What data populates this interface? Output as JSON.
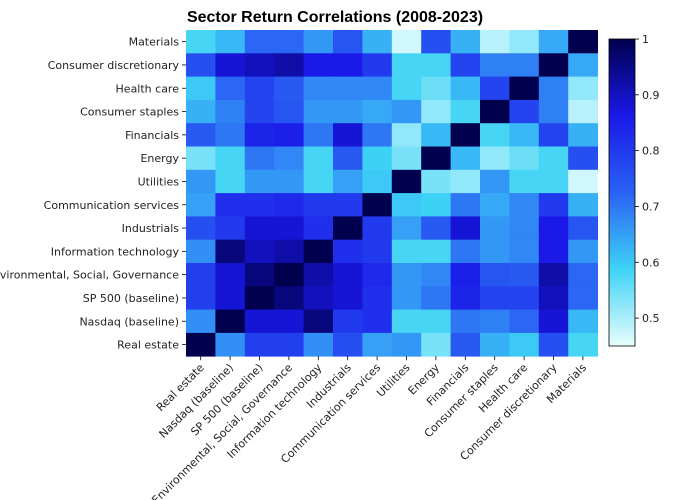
{
  "chart_data": {
    "type": "heatmap",
    "title": "Sector Return Correlations (2008-2023)",
    "x_labels": [
      "Real estate",
      "Nasdaq (baseline)",
      "SP 500 (baseline)",
      "Environmental, Social, Governance",
      "Information technology",
      "Industrials",
      "Communication services",
      "Utilities",
      "Energy",
      "Financials",
      "Consumer staples",
      "Health care",
      "Consumer discretionary",
      "Materials"
    ],
    "y_labels": [
      "Materials",
      "Consumer discretionary",
      "Health care",
      "Consumer staples",
      "Financials",
      "Energy",
      "Utilities",
      "Communication services",
      "Industrials",
      "Information technology",
      "Environmental, Social, Governance",
      "SP 500 (baseline)",
      "Nasdaq (baseline)",
      "Real estate"
    ],
    "values": [
      [
        0.58,
        0.62,
        0.72,
        0.72,
        0.66,
        0.75,
        0.63,
        0.47,
        0.76,
        0.63,
        0.49,
        0.52,
        0.64,
        1.0
      ],
      [
        0.76,
        0.88,
        0.9,
        0.92,
        0.86,
        0.86,
        0.8,
        0.58,
        0.58,
        0.78,
        0.69,
        0.69,
        1.0,
        0.64
      ],
      [
        0.6,
        0.72,
        0.78,
        0.74,
        0.68,
        0.68,
        0.68,
        0.58,
        0.55,
        0.62,
        0.78,
        1.0,
        0.69,
        0.52
      ],
      [
        0.63,
        0.69,
        0.78,
        0.75,
        0.66,
        0.66,
        0.64,
        0.66,
        0.52,
        0.58,
        1.0,
        0.78,
        0.69,
        0.49
      ],
      [
        0.74,
        0.7,
        0.84,
        0.85,
        0.7,
        0.88,
        0.7,
        0.52,
        0.62,
        1.0,
        0.58,
        0.62,
        0.78,
        0.63
      ],
      [
        0.54,
        0.58,
        0.7,
        0.68,
        0.58,
        0.74,
        0.59,
        0.54,
        1.0,
        0.62,
        0.52,
        0.55,
        0.58,
        0.76
      ],
      [
        0.66,
        0.58,
        0.66,
        0.66,
        0.58,
        0.65,
        0.6,
        1.0,
        0.54,
        0.52,
        0.66,
        0.58,
        0.58,
        0.47
      ],
      [
        0.65,
        0.82,
        0.82,
        0.83,
        0.8,
        0.8,
        1.0,
        0.6,
        0.59,
        0.7,
        0.64,
        0.68,
        0.8,
        0.63
      ],
      [
        0.76,
        0.8,
        0.88,
        0.88,
        0.82,
        1.0,
        0.8,
        0.65,
        0.74,
        0.88,
        0.66,
        0.68,
        0.86,
        0.75
      ],
      [
        0.67,
        0.96,
        0.9,
        0.92,
        1.0,
        0.82,
        0.8,
        0.58,
        0.58,
        0.7,
        0.66,
        0.68,
        0.86,
        0.66
      ],
      [
        0.79,
        0.88,
        0.96,
        1.0,
        0.92,
        0.88,
        0.83,
        0.66,
        0.68,
        0.85,
        0.75,
        0.74,
        0.92,
        0.72
      ],
      [
        0.79,
        0.88,
        1.0,
        0.96,
        0.9,
        0.88,
        0.82,
        0.66,
        0.7,
        0.84,
        0.78,
        0.78,
        0.9,
        0.72
      ],
      [
        0.67,
        1.0,
        0.88,
        0.88,
        0.96,
        0.8,
        0.82,
        0.58,
        0.58,
        0.7,
        0.69,
        0.72,
        0.88,
        0.62
      ],
      [
        1.0,
        0.67,
        0.79,
        0.79,
        0.67,
        0.76,
        0.65,
        0.66,
        0.54,
        0.74,
        0.63,
        0.6,
        0.76,
        0.58
      ]
    ],
    "colorbar": {
      "min": 0.45,
      "max": 1.0,
      "ticks": [
        "0.5",
        "0.6",
        "0.7",
        "0.8",
        "0.9",
        "1"
      ],
      "tick_values": [
        0.5,
        0.6,
        0.7,
        0.8,
        0.9,
        1.0
      ]
    },
    "colormap": [
      "#e8fdfe",
      "#3ed3f6",
      "#2a62f4",
      "#1a18e8",
      "#00004f"
    ],
    "grid": false
  }
}
